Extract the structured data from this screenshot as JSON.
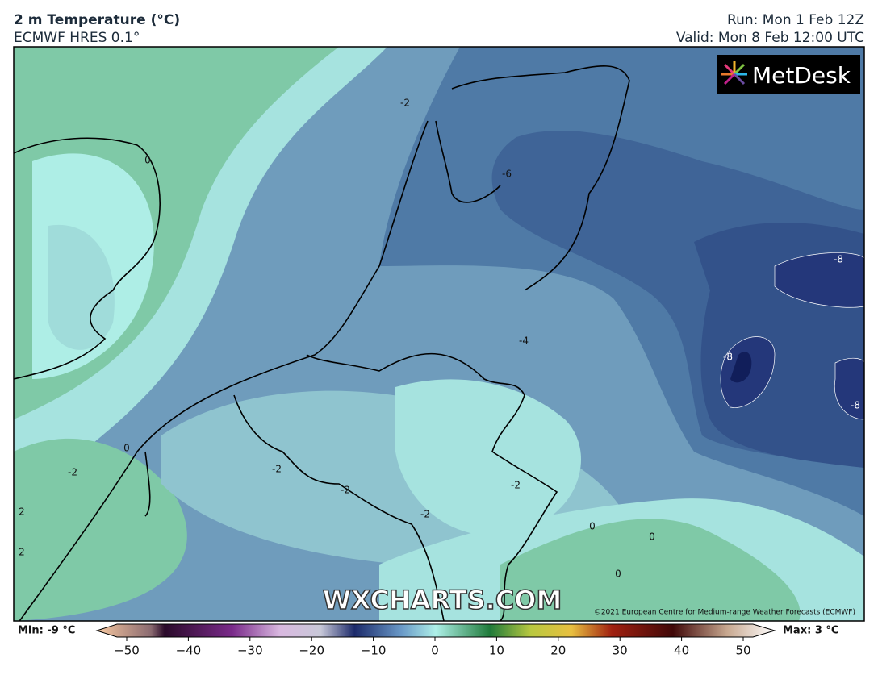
{
  "header": {
    "title": "2 m Temperature (°C)",
    "subtitle": "ECMWF HRES 0.1°",
    "run": "Run: Mon 1 Feb 12Z",
    "valid": "Valid: Mon 8 Feb 12:00 UTC"
  },
  "map": {
    "logo": "MetDesk",
    "watermark": "WXCHARTS.COM",
    "copyright": "©2021 European Centre for Medium-range Weather Forecasts (ECMWF)",
    "contour_labels": [
      -2,
      0,
      -6,
      -8,
      -4,
      -8,
      -8,
      0,
      -2,
      -2,
      -2,
      -2,
      -2,
      0,
      0,
      0,
      2,
      2
    ]
  },
  "colorbar": {
    "min_label": "Min: -9 °C",
    "max_label": "Max: 3 °C",
    "lim": [
      -50,
      50
    ],
    "ticks": [
      {
        "value": -50,
        "label": "−50"
      },
      {
        "value": -40,
        "label": "−40"
      },
      {
        "value": -30,
        "label": "−30"
      },
      {
        "value": -20,
        "label": "−20"
      },
      {
        "value": -10,
        "label": "−10"
      },
      0,
      10,
      20,
      30,
      40,
      50
    ]
  }
}
